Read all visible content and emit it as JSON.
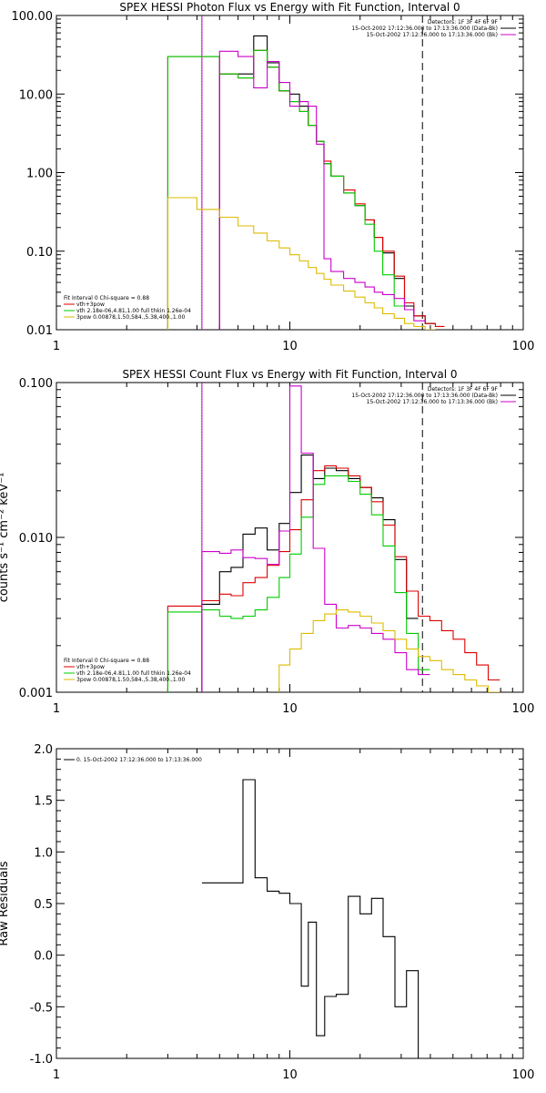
{
  "chart_data": [
    {
      "type": "line",
      "title": "SPEX HESSI Photon Flux vs Energy with Fit Function, Interval 0",
      "ylabel": "",
      "x_scale": "log",
      "y_scale": "log",
      "xlim": [
        1,
        100
      ],
      "ylim": [
        0.01,
        100
      ],
      "x_ticks": [
        "1",
        "10",
        "100"
      ],
      "y_ticks": [
        "0.01",
        "0.10",
        "1.00",
        "10.00",
        "100.00"
      ],
      "vlines": [
        {
          "x": 4.2,
          "style": "dotted",
          "color": "#000000"
        },
        {
          "x": 4.2,
          "style": "solid",
          "color": "#cc00cc"
        },
        {
          "x": 37,
          "style": "dashed",
          "color": "#000000"
        }
      ],
      "header_lines": [
        "Detectors: 1F 3F 4F 6F 9F",
        "15-Oct-2002 17:12:36.000 to 17:13:36.000 (Data-Bk)",
        "15-Oct-2002 17:12:36.000 to 17:13:36.000 (Bk)"
      ],
      "fit_info": "Fit Interval 0   Chi-square = 0.88",
      "legend": [
        {
          "label": "vth+3pow",
          "color": "#dd0000"
        },
        {
          "label": "vth 2.18e-06,4.81,1.00  full thkin 1.26e-04",
          "color": "#00cc00"
        },
        {
          "label": "3pow 0.00878,1.50,584.,5.38,400.,1.00",
          "color": "#ddbb00"
        }
      ],
      "edges": [
        3.0,
        4.0,
        5.0,
        6.0,
        7.0,
        8.0,
        9.0,
        10.0,
        11.0,
        12.0,
        13.0,
        14.0,
        15.0,
        17.0,
        19.0,
        21.0,
        23.0,
        25.0,
        28.0,
        31.0,
        34.0,
        38.0,
        42.0,
        46.0
      ],
      "series": [
        {
          "color": "#000000",
          "values": [
            null,
            null,
            18,
            18,
            55,
            25,
            11,
            10,
            7,
            4,
            2.5,
            1.3,
            0.9,
            0.55,
            0.38,
            0.25,
            0.15,
            0.095,
            0.045,
            0.02,
            0.015,
            0.012,
            null
          ]
        },
        {
          "color": "#dd0000",
          "values": [
            30,
            30,
            18,
            16,
            36,
            22,
            11,
            8,
            6,
            4,
            2.5,
            1.4,
            0.9,
            0.6,
            0.4,
            0.25,
            0.15,
            0.1,
            0.048,
            0.022,
            0.015,
            0.012,
            0.011
          ]
        },
        {
          "color": "#00cc00",
          "values": [
            30,
            30,
            18,
            16,
            36,
            22,
            11,
            8,
            6,
            4,
            2.5,
            1.3,
            0.9,
            0.55,
            0.38,
            0.22,
            0.1,
            0.05,
            0.02,
            null,
            null,
            null,
            null
          ]
        },
        {
          "color": "#cc00cc",
          "values": [
            null,
            null,
            35,
            30,
            12,
            26,
            14,
            7,
            8,
            7,
            2.3,
            0.08,
            0.055,
            0.045,
            0.04,
            0.035,
            0.03,
            0.028,
            0.025,
            0.018,
            0.013,
            null,
            null
          ]
        },
        {
          "color": "#ddbb00",
          "values": [
            0.48,
            0.34,
            0.27,
            0.21,
            0.17,
            0.135,
            0.11,
            0.09,
            0.075,
            0.062,
            0.052,
            0.044,
            0.037,
            0.031,
            0.026,
            0.022,
            0.019,
            0.016,
            0.014,
            0.012,
            0.011,
            0.01,
            null
          ]
        }
      ]
    },
    {
      "type": "line",
      "title": "SPEX HESSI Count Flux vs Energy with Fit Function, Interval 0",
      "ylabel": "counts s⁻¹ cm⁻² keV⁻¹",
      "x_scale": "log",
      "y_scale": "log",
      "xlim": [
        1,
        100
      ],
      "ylim": [
        0.001,
        0.1
      ],
      "x_ticks": [
        "1",
        "10",
        "100"
      ],
      "y_ticks": [
        "0.001",
        "0.010",
        "0.100"
      ],
      "vlines": [
        {
          "x": 4.2,
          "style": "dotted",
          "color": "#000000"
        },
        {
          "x": 4.2,
          "style": "solid",
          "color": "#cc00cc"
        },
        {
          "x": 37,
          "style": "dashed",
          "color": "#000000"
        }
      ],
      "header_lines": [
        "Detectors: 1F 3F 4F 6F 9F",
        "15-Oct-2002 17:12:36.000 to 17:13:36.000 (Data-Bk)",
        "15-Oct-2002 17:12:36.000 to 17:13:36.000 (Bk)"
      ],
      "fit_info": "Fit Interval 0   Chi-square = 0.88",
      "legend": [
        {
          "label": "vth+3pow",
          "color": "#dd0000"
        },
        {
          "label": "vth 2.18e-06,4.81,1.00  full thkin 1.26e-04",
          "color": "#00cc00"
        },
        {
          "label": "3pow 0.00878,1.50,584.,5.38,400.,1.00",
          "color": "#ddbb00"
        }
      ],
      "edges": [
        3.0,
        4.2,
        5.0,
        5.6,
        6.3,
        7.1,
        8.0,
        9.0,
        10.0,
        11.2,
        12.6,
        14.1,
        15.8,
        17.8,
        20.0,
        22.4,
        25.1,
        28.2,
        31.6,
        35.5,
        39.8,
        44.7,
        50.1,
        56.2,
        63.1,
        70.8,
        79.4
      ],
      "series": [
        {
          "color": "#000000",
          "values": [
            null,
            0.0037,
            0.006,
            0.0064,
            0.0105,
            0.0115,
            0.0083,
            0.0123,
            0.0195,
            0.034,
            0.024,
            0.028,
            0.027,
            0.024,
            0.021,
            0.018,
            0.013,
            0.0072,
            0.003,
            null,
            null,
            null,
            null,
            null,
            null,
            null
          ]
        },
        {
          "color": "#dd0000",
          "values": [
            0.0036,
            0.0039,
            0.0043,
            0.0042,
            0.0051,
            0.0055,
            0.0066,
            0.0081,
            0.0112,
            0.0175,
            0.027,
            0.029,
            0.028,
            0.025,
            0.021,
            0.017,
            0.012,
            0.0075,
            0.0045,
            0.0031,
            0.0029,
            0.0025,
            0.0022,
            0.0018,
            0.0015,
            0.0012
          ]
        },
        {
          "color": "#00cc00",
          "values": [
            0.0033,
            0.0034,
            0.0031,
            0.003,
            0.0031,
            0.0034,
            0.0041,
            0.0055,
            0.0078,
            0.0135,
            0.022,
            0.025,
            0.025,
            0.023,
            0.019,
            0.014,
            0.0088,
            0.0044,
            0.0024,
            0.0014,
            null,
            null,
            null,
            null,
            null,
            null
          ]
        },
        {
          "color": "#cc00cc",
          "values": [
            null,
            0.0081,
            0.0079,
            0.0083,
            0.0074,
            0.0073,
            0.0067,
            0.011,
            0.095,
            0.035,
            0.0085,
            0.0037,
            0.0026,
            0.0027,
            0.0026,
            0.0024,
            0.0022,
            0.0018,
            0.0014,
            0.0013,
            null,
            null,
            null,
            null,
            null,
            null
          ]
        },
        {
          "color": "#ddbb00",
          "values": [
            null,
            null,
            null,
            null,
            null,
            null,
            null,
            0.0015,
            0.0019,
            0.0024,
            0.0029,
            0.0032,
            0.0034,
            0.0033,
            0.0031,
            0.0028,
            0.0025,
            0.0022,
            0.0019,
            0.0017,
            0.0016,
            0.0014,
            0.0013,
            0.0012,
            0.0011,
            0.001
          ]
        }
      ]
    },
    {
      "type": "line",
      "title": "",
      "ylabel": "Raw Residuals",
      "x_scale": "log",
      "y_scale": "linear",
      "xlim": [
        1,
        100
      ],
      "ylim": [
        -1.0,
        2.0
      ],
      "x_ticks": [
        "1",
        "10",
        "100"
      ],
      "y_ticks": [
        "-1.0",
        "-0.5",
        "0.0",
        "0.5",
        "1.0",
        "1.5",
        "2.0"
      ],
      "legend": [
        {
          "label": "0. 15-Oct-2002 17:12:36.000 to 17:13:36.000",
          "color": "#000000"
        }
      ],
      "edges": [
        4.2,
        6.3,
        7.1,
        8.0,
        9.0,
        10.0,
        11.2,
        12.0,
        13.0,
        14.1,
        15.8,
        17.8,
        20.0,
        22.4,
        25.1,
        28.2,
        31.6,
        35.5,
        38.0
      ],
      "series": [
        {
          "color": "#000000",
          "values": [
            0.7,
            1.7,
            0.75,
            0.62,
            0.6,
            0.5,
            -0.3,
            0.32,
            -0.78,
            -0.4,
            -0.38,
            0.57,
            0.4,
            0.55,
            0.18,
            -0.5,
            -0.15,
            -1.0
          ]
        }
      ]
    }
  ]
}
